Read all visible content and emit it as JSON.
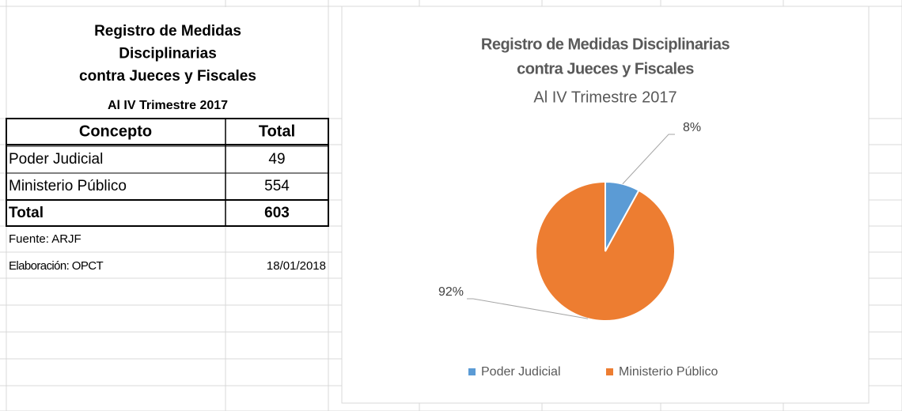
{
  "table": {
    "title_lines": [
      "Registro de Medidas",
      "Disciplinarias",
      "contra Jueces y Fiscales"
    ],
    "subtitle": "Al IV Trimestre 2017",
    "headers": [
      "Concepto",
      "Total"
    ],
    "rows": [
      [
        "Poder Judicial",
        49
      ],
      [
        "Ministerio Público",
        554
      ]
    ],
    "total": [
      "Total",
      603
    ],
    "source": "Fuente: ARJF",
    "prepared": [
      "Elaboración: OPCT",
      "18/01/2018"
    ]
  },
  "chart_data": {
    "type": "pie",
    "title_lines": [
      "Registro de Medidas Disciplinarias",
      "contra Jueces y Fiscales"
    ],
    "subtitle": "Al IV Trimestre 2017",
    "categories": [
      "Poder Judicial",
      "Ministerio Público"
    ],
    "values": [
      8,
      92
    ],
    "value_labels": [
      "8%",
      "92%"
    ],
    "colors": [
      "#5b9bd5",
      "#ed7d31"
    ],
    "legend": "bottom"
  }
}
